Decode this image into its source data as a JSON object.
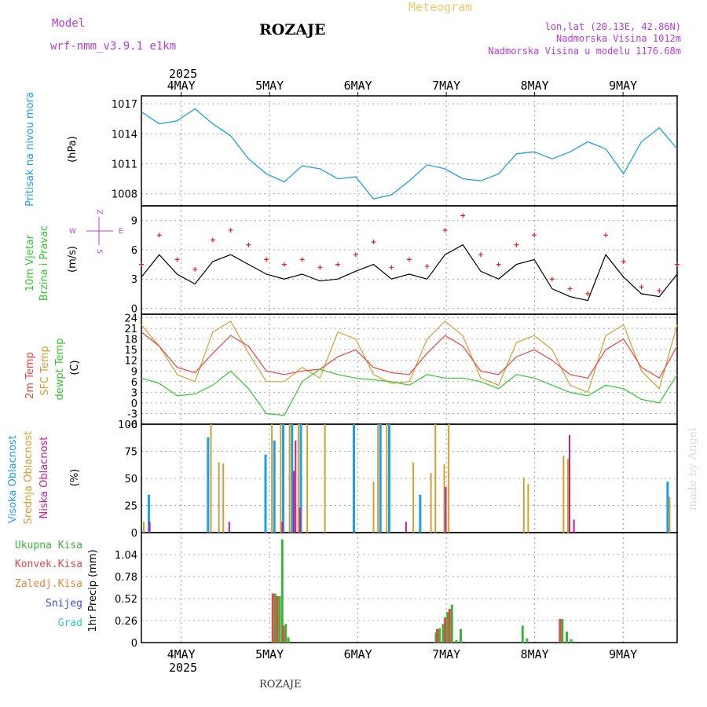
{
  "header": {
    "meteogram": "Meteogram",
    "station": "ROZAJE",
    "model_label": "Model",
    "model_name": "wrf-nmm_v3.9.1 e1km",
    "coords": "lon,lat (20.13E, 42.86N)",
    "elevation": "Nadmorska Visina 1012m",
    "model_elevation": "Nadmorska Visina u modelu 1176.68m",
    "footer_station": "ROZAJE",
    "watermark": "made by Angel"
  },
  "time_axis": {
    "year": "2025",
    "days": [
      "4MAY",
      "5MAY",
      "6MAY",
      "7MAY",
      "8MAY",
      "9MAY"
    ]
  },
  "colors": {
    "pressure": "#1ea0e6",
    "wind_speed": "#000000",
    "wind_gust": "#e61e1e",
    "temp_2m": "#e64646",
    "temp_sfc": "#d2a032",
    "dewpoint": "#32c832",
    "cloud_high": "#1ea0e6",
    "cloud_mid": "#d2a032",
    "cloud_low": "#c81e8c",
    "precip_total": "#3cb43c",
    "precip_conv": "#e64646",
    "precip_frz": "#f08232",
    "precip_snow": "#4646e6",
    "precip_grad": "#32c8c8",
    "title": "#000000",
    "purple_text": "#b43cdc",
    "orange_text": "#f0c864"
  },
  "chart_data": [
    {
      "type": "line",
      "panel": "pressure",
      "title_lines": [
        "Pritisak na nivou mora",
        "(hPa)"
      ],
      "yticks": [
        "1017",
        "1014",
        "1011",
        "1008"
      ],
      "ylim": [
        1006.8,
        1017.8
      ],
      "x_days": [
        0.0,
        0.2,
        0.4,
        0.6,
        0.8,
        1.0,
        1.2,
        1.4,
        1.6,
        1.8,
        2.0,
        2.2,
        2.4,
        2.6,
        2.8,
        3.0,
        3.2,
        3.4,
        3.6,
        3.8,
        4.0,
        4.2,
        4.4,
        4.6,
        4.8,
        5.0,
        5.2,
        5.4,
        5.6,
        5.8,
        6.0
      ],
      "series": [
        {
          "values": [
            1016.2,
            1015.0,
            1015.3,
            1016.5,
            1015.0,
            1013.8,
            1011.5,
            1010.0,
            1009.2,
            1010.8,
            1010.5,
            1009.5,
            1009.7,
            1007.5,
            1007.9,
            1009.3,
            1010.9,
            1010.5,
            1009.5,
            1009.3,
            1010.0,
            1012.0,
            1012.2,
            1011.5,
            1012.2,
            1013.2,
            1012.5,
            1010.0,
            1013.2,
            1014.6,
            1012.5
          ]
        }
      ]
    },
    {
      "type": "line",
      "panel": "wind",
      "title_lines": [
        "10m Vjetar",
        "Brzina i Pravac",
        "(m/s)"
      ],
      "compass_labels": [
        "Z",
        "W",
        "E",
        "S"
      ],
      "yticks": [
        "9",
        "6",
        "3",
        "0"
      ],
      "ylim": [
        -0.6,
        10.5
      ],
      "x_days": [
        0.0,
        0.2,
        0.4,
        0.6,
        0.8,
        1.0,
        1.2,
        1.4,
        1.6,
        1.8,
        2.0,
        2.2,
        2.4,
        2.6,
        2.8,
        3.0,
        3.2,
        3.4,
        3.6,
        3.8,
        4.0,
        4.2,
        4.4,
        4.6,
        4.8,
        5.0,
        5.2,
        5.4,
        5.6,
        5.8,
        6.0
      ],
      "series": [
        {
          "values": [
            3.2,
            5.5,
            3.5,
            2.5,
            4.8,
            5.5,
            4.5,
            3.5,
            3.0,
            3.5,
            2.8,
            3.0,
            3.8,
            4.5,
            3.0,
            3.5,
            3.0,
            5.5,
            6.5,
            3.8,
            3.0,
            4.5,
            5.0,
            2.0,
            1.2,
            0.8,
            5.5,
            3.2,
            1.5,
            1.2,
            3.5
          ]
        },
        {
          "values": [
            4.5,
            7.5,
            5.0,
            4.0,
            7.0,
            8.0,
            6.5,
            5.0,
            4.5,
            5.0,
            4.2,
            4.5,
            5.5,
            6.8,
            4.2,
            5.0,
            4.3,
            8.0,
            9.5,
            5.5,
            4.5,
            6.5,
            7.5,
            3.0,
            2.0,
            1.5,
            7.5,
            4.8,
            2.2,
            1.8,
            4.5
          ]
        }
      ]
    },
    {
      "type": "line",
      "panel": "temperature",
      "title_lines": [
        "2m Temp",
        "SFC Temp",
        "dewpt Temp",
        "(C)"
      ],
      "yticks": [
        "24",
        "21",
        "18",
        "15",
        "12",
        "9",
        "6",
        "3",
        "0",
        "-3",
        "-6"
      ],
      "ylim": [
        -6,
        25
      ],
      "x_days": [
        0.0,
        0.2,
        0.4,
        0.6,
        0.8,
        1.0,
        1.2,
        1.4,
        1.6,
        1.8,
        2.0,
        2.2,
        2.4,
        2.6,
        2.8,
        3.0,
        3.2,
        3.4,
        3.6,
        3.8,
        4.0,
        4.2,
        4.4,
        4.6,
        4.8,
        5.0,
        5.2,
        5.4,
        5.6,
        5.8,
        6.0
      ],
      "series": [
        {
          "name": "2m Temp",
          "values": [
            20,
            16,
            10,
            8.5,
            14,
            19,
            16,
            9,
            8,
            9,
            9.5,
            13,
            15,
            10,
            8.5,
            8,
            14,
            19,
            16,
            9,
            8,
            13,
            15,
            12,
            8,
            7,
            15,
            18,
            10,
            7,
            16
          ]
        },
        {
          "name": "SFC Temp",
          "values": [
            22,
            16,
            8,
            6,
            20,
            23,
            14,
            6,
            6,
            10,
            7,
            20,
            18,
            8,
            5.5,
            6,
            18,
            23,
            19,
            7,
            5,
            17,
            19,
            15,
            5,
            3,
            19,
            22,
            9,
            4,
            22
          ]
        },
        {
          "name": "dewpt Temp",
          "values": [
            7,
            5.5,
            2,
            2.5,
            5,
            9,
            4,
            -3,
            -3.5,
            6,
            9.5,
            8,
            7,
            6.5,
            6,
            5,
            8,
            7,
            7,
            6,
            4,
            8,
            7,
            5,
            3,
            2,
            5,
            4,
            1,
            0,
            8
          ]
        }
      ]
    },
    {
      "type": "bar",
      "panel": "clouds",
      "title_lines": [
        "Visoka Oblacnost",
        "Srednja Oblacnost",
        "Niska Oblacnost",
        "(%)"
      ],
      "yticks": [
        "100",
        "75",
        "50",
        "25",
        "0"
      ],
      "ylim": [
        0,
        100
      ],
      "series": [
        {
          "name": "Visoka Oblacnost",
          "points": [
            [
              0.08,
              35
            ],
            [
              0.75,
              88
            ],
            [
              1.4,
              72
            ],
            [
              1.5,
              85
            ],
            [
              1.6,
              100
            ],
            [
              1.7,
              100
            ],
            [
              1.8,
              100
            ],
            [
              2.4,
              100
            ],
            [
              2.7,
              100
            ],
            [
              2.8,
              100
            ],
            [
              3.15,
              35
            ],
            [
              5.95,
              47
            ]
          ]
        },
        {
          "name": "Srednja Oblacnost",
          "points": [
            [
              0.0,
              10
            ],
            [
              0.76,
              100
            ],
            [
              0.85,
              65
            ],
            [
              0.9,
              64
            ],
            [
              1.45,
              100
            ],
            [
              1.55,
              100
            ],
            [
              1.65,
              100
            ],
            [
              1.75,
              100
            ],
            [
              1.85,
              100
            ],
            [
              2.05,
              100
            ],
            [
              2.6,
              47
            ],
            [
              2.65,
              100
            ],
            [
              2.75,
              100
            ],
            [
              3.05,
              65
            ],
            [
              3.25,
              55
            ],
            [
              3.3,
              100
            ],
            [
              3.4,
              63
            ],
            [
              3.45,
              100
            ],
            [
              4.3,
              51
            ],
            [
              4.35,
              45
            ],
            [
              4.75,
              71
            ],
            [
              4.8,
              68
            ],
            [
              5.95,
              33
            ]
          ]
        },
        {
          "name": "Niska Oblacnost",
          "points": [
            [
              0.05,
              10
            ],
            [
              0.95,
              10
            ],
            [
              1.55,
              10
            ],
            [
              1.68,
              57
            ],
            [
              1.7,
              85
            ],
            [
              1.75,
              23
            ],
            [
              2.95,
              10
            ],
            [
              3.4,
              42
            ],
            [
              4.8,
              90
            ],
            [
              4.85,
              12
            ]
          ]
        }
      ]
    },
    {
      "type": "bar",
      "panel": "precip",
      "title_lines": [
        "Ukupna Kisa",
        "Konvek.Kisa",
        "Zaledj.Kisa",
        "Snijeg",
        "Grad",
        "1hr Precip (mm)"
      ],
      "yticks": [
        "1.04",
        "0.78",
        "0.52",
        "0.26",
        "0"
      ],
      "ylim": [
        0,
        1.3
      ],
      "series": [
        {
          "name": "Ukupna Kisa",
          "points": [
            [
              1.5,
              0.58
            ],
            [
              1.55,
              0.55
            ],
            [
              1.58,
              1.22
            ],
            [
              1.62,
              0.22
            ],
            [
              1.65,
              0.06
            ],
            [
              3.32,
              0.12
            ],
            [
              3.36,
              0.17
            ],
            [
              3.4,
              0.22
            ],
            [
              3.45,
              0.36
            ],
            [
              3.5,
              0.45
            ],
            [
              3.55,
              0.03
            ],
            [
              3.6,
              0.16
            ],
            [
              4.3,
              0.2
            ],
            [
              4.35,
              0.05
            ],
            [
              4.75,
              0.28
            ],
            [
              4.8,
              0.13
            ],
            [
              4.85,
              0.04
            ]
          ]
        },
        {
          "name": "Konvek.Kisa",
          "points": [
            [
              1.5,
              0.58
            ],
            [
              1.55,
              0.55
            ],
            [
              1.62,
              0.2
            ],
            [
              3.36,
              0.16
            ],
            [
              3.45,
              0.3
            ],
            [
              3.5,
              0.4
            ],
            [
              4.75,
              0.28
            ]
          ]
        }
      ]
    }
  ]
}
